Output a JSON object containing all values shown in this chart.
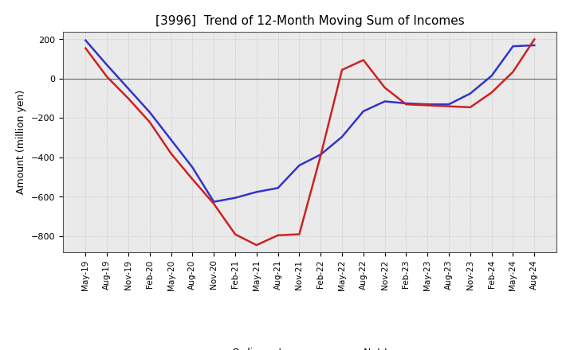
{
  "title": "[3996]  Trend of 12-Month Moving Sum of Incomes",
  "ylabel": "Amount (million yen)",
  "ylim": [
    -880,
    240
  ],
  "yticks": [
    -800,
    -600,
    -400,
    -200,
    0,
    200
  ],
  "background_color": "#ffffff",
  "plot_bg_color": "#eaeaea",
  "grid_color": "#bbbbbb",
  "x_labels": [
    "May-19",
    "Aug-19",
    "Nov-19",
    "Feb-20",
    "May-20",
    "Aug-20",
    "Nov-20",
    "Feb-21",
    "May-21",
    "Aug-21",
    "Nov-21",
    "Feb-22",
    "May-22",
    "Aug-22",
    "Nov-22",
    "Feb-23",
    "May-23",
    "Aug-23",
    "Nov-23",
    "Feb-24",
    "May-24",
    "Aug-24"
  ],
  "ordinary_income": [
    195,
    70,
    -50,
    -170,
    -310,
    -450,
    -625,
    -605,
    -575,
    -555,
    -440,
    -385,
    -295,
    -165,
    -115,
    -125,
    -130,
    -130,
    -75,
    15,
    165,
    170
  ],
  "net_income": [
    155,
    10,
    -100,
    -220,
    -380,
    -510,
    -635,
    -790,
    -845,
    -795,
    -790,
    -390,
    45,
    95,
    -45,
    -130,
    -135,
    -140,
    -145,
    -70,
    35,
    200
  ],
  "ordinary_color": "#3333cc",
  "net_color": "#cc2222",
  "line_width": 1.8,
  "legend_fontsize": 9,
  "title_fontsize": 11,
  "ylabel_fontsize": 9,
  "tick_fontsize": 7.5
}
